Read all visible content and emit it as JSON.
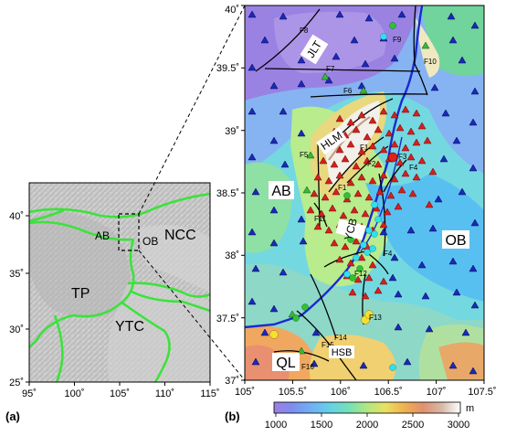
{
  "panel_a": {
    "caption": "(a)",
    "x_ticks": [
      "95˚",
      "100˚",
      "105˚",
      "110˚",
      "115˚"
    ],
    "y_ticks": [
      "40˚",
      "35˚",
      "30˚",
      "25˚"
    ],
    "regions": {
      "ab": "AB",
      "ob": "OB",
      "ncc": "NCC",
      "tp": "TP",
      "ytc": "YTC"
    }
  },
  "panel_b": {
    "caption": "(b)",
    "x_ticks": [
      "105˚",
      "105.5˚",
      "106˚",
      "106.5˚",
      "107˚",
      "107.5˚"
    ],
    "y_ticks": [
      "40˚",
      "39.5˚",
      "39˚",
      "38.5˚",
      "38˚",
      "37.5˚",
      "37˚"
    ],
    "regions": {
      "jlt": "JLT",
      "hlm": "HLM",
      "ab": "AB",
      "ycb": "YCB",
      "ob": "OB",
      "ql": "QL",
      "hsb": "HSB"
    },
    "faults": [
      "F1",
      "F2",
      "F3",
      "F4",
      "F5",
      "F6",
      "F7",
      "F8",
      "F9",
      "F10",
      "F11",
      "F12",
      "F13",
      "F14",
      "F15",
      "F16",
      "F1",
      "F4"
    ]
  },
  "colorbar": {
    "unit": "m",
    "ticks": [
      "1000",
      "1500",
      "2000",
      "2500",
      "3000"
    ],
    "colors": [
      "#9b7fe0",
      "#7e8ef0",
      "#6fb0f5",
      "#66d0e8",
      "#74e0b8",
      "#b0e880",
      "#e8e060",
      "#f0b050",
      "#e09070",
      "#d8b8a8",
      "#ffffff"
    ]
  },
  "markers": {
    "red_triangle": "#d42020",
    "blue_triangle": "#1a2ab8",
    "green_triangle": "#3ab83a",
    "cyan_dot": "#30e0f0",
    "green_dot": "#2fc42f",
    "yellow_dot": "#f5e030"
  }
}
